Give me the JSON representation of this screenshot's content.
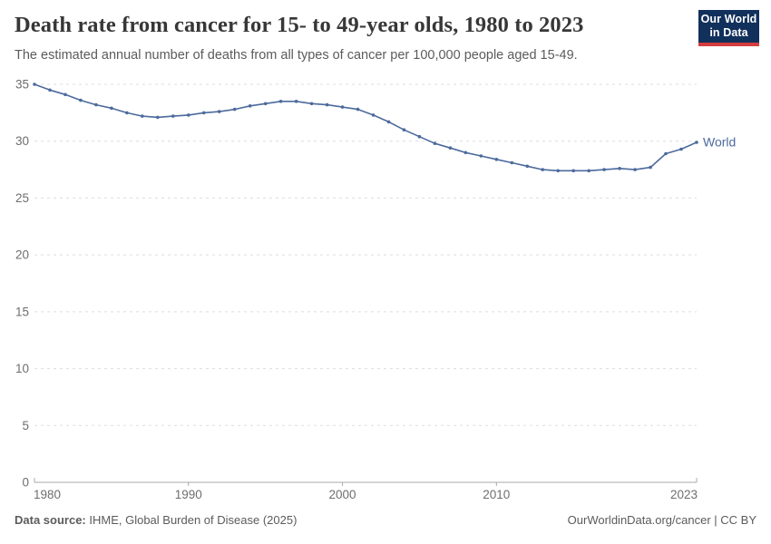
{
  "header": {
    "title": "Death rate from cancer for 15- to 49-year olds, 1980 to 2023",
    "subtitle": "The estimated annual number of deaths from all types of cancer per 100,000 people aged 15-49."
  },
  "logo": {
    "line1": "Our World",
    "line2": "in Data"
  },
  "footer": {
    "source_label": "Data source:",
    "source_value": " IHME, Global Burden of Disease (2025)",
    "right_text": "OurWorldinData.org/cancer | CC BY"
  },
  "colors": {
    "line": "#4C6A9C",
    "series_label": "#4C6A9C",
    "grid": "#dddddd",
    "axis": "#a8a8a8",
    "tick_label": "#6e6e6e",
    "title": "#373737",
    "subtitle": "#5b5b5b",
    "logo_bg": "#12305c",
    "logo_stripe": "#d43d3d"
  },
  "chart_data": {
    "type": "line",
    "title": "Death rate from cancer for 15- to 49-year olds, 1980 to 2023",
    "xlabel": "",
    "ylabel": "",
    "x": [
      1980,
      1981,
      1982,
      1983,
      1984,
      1985,
      1986,
      1987,
      1988,
      1989,
      1990,
      1991,
      1992,
      1993,
      1994,
      1995,
      1996,
      1997,
      1998,
      1999,
      2000,
      2001,
      2002,
      2003,
      2004,
      2005,
      2006,
      2007,
      2008,
      2009,
      2010,
      2011,
      2012,
      2013,
      2014,
      2015,
      2016,
      2017,
      2018,
      2019,
      2020,
      2021,
      2022,
      2023
    ],
    "series": [
      {
        "name": "World",
        "values": [
          35.0,
          34.5,
          34.1,
          33.6,
          33.2,
          32.9,
          32.5,
          32.2,
          32.1,
          32.2,
          32.3,
          32.5,
          32.6,
          32.8,
          33.1,
          33.3,
          33.5,
          33.5,
          33.3,
          33.2,
          33.0,
          32.8,
          32.3,
          31.7,
          31.0,
          30.4,
          29.8,
          29.4,
          29.0,
          28.7,
          28.4,
          28.1,
          27.8,
          27.5,
          27.4,
          27.4,
          27.4,
          27.5,
          27.6,
          27.5,
          27.7,
          28.9,
          29.3,
          29.9
        ]
      }
    ],
    "ylim": [
      0,
      35
    ],
    "yticks": [
      0,
      5,
      10,
      15,
      20,
      25,
      30,
      35
    ],
    "xticks": [
      1980,
      1990,
      2000,
      2010,
      2023
    ],
    "grid": "horizontal-dashed",
    "legend": "end-of-line-label",
    "markers": true
  }
}
